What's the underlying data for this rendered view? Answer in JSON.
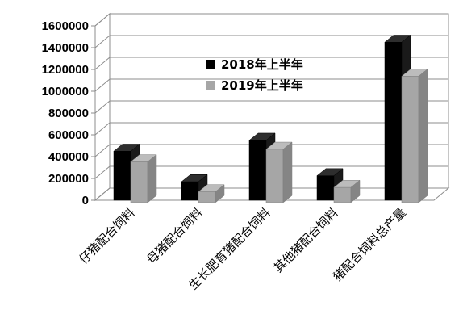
{
  "chart_data": {
    "type": "bar",
    "title": "",
    "xlabel": "",
    "ylabel": "",
    "ylim": [
      0,
      1600000
    ],
    "yticks": [
      0,
      200000,
      400000,
      600000,
      800000,
      1000000,
      1200000,
      1400000,
      1600000
    ],
    "grid": true,
    "legend_position": "top-right",
    "categories": [
      "仔猪配合饲料",
      "母猪配合饲料",
      "生长肥育猪配合饲料",
      "其他猪配合饲料",
      "猪配合饲料总产量"
    ],
    "series": [
      {
        "name": "2018年上半年",
        "color": "#000000",
        "values": [
          450000,
          170000,
          550000,
          225000,
          1450000
        ]
      },
      {
        "name": "2019年上半年",
        "color": "#a6a6a6",
        "values": [
          375000,
          100000,
          490000,
          140000,
          1160000
        ]
      }
    ]
  }
}
